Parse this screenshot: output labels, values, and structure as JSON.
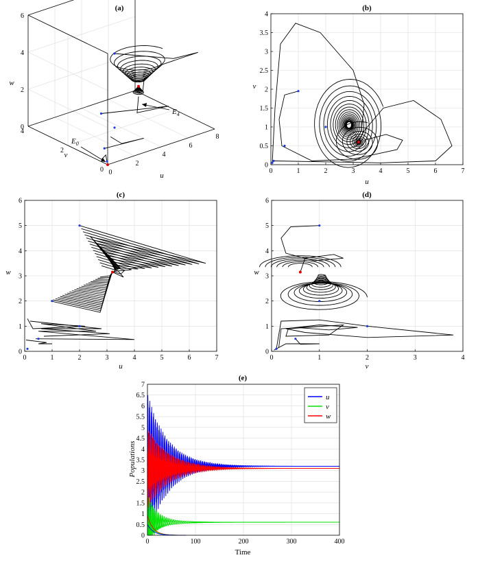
{
  "figure": {
    "panels": [
      {
        "id": "a",
        "title": "(a)"
      },
      {
        "id": "b",
        "title": "(b)"
      },
      {
        "id": "c",
        "title": "(c)"
      },
      {
        "id": "d",
        "title": "(d)"
      },
      {
        "id": "e",
        "title": "(e)"
      }
    ]
  },
  "chart_data": [
    {
      "panel": "(a)",
      "title": "(a)",
      "type": "line",
      "projection": "3d",
      "xlabel": "u",
      "ylabel": "v",
      "zlabel": "w",
      "u_ticks": [
        "0",
        "2",
        "4",
        "6",
        "8"
      ],
      "v_ticks": [
        "0",
        "2",
        "4"
      ],
      "w_ticks": [
        "0",
        "2",
        "4",
        "6"
      ],
      "xlim": [
        0,
        8
      ],
      "ylim": [
        0,
        4
      ],
      "zlim": [
        0,
        6
      ],
      "annotations": [
        {
          "text": "E",
          "sub": "4",
          "u": 3.2,
          "v": 0.6,
          "w": 3.15
        },
        {
          "text": "E",
          "sub": "0",
          "u": 0.0,
          "v": 0.0,
          "w": 0.0
        }
      ],
      "equilibria": [
        {
          "name": "E4",
          "u": 3.2,
          "v": 0.6,
          "w": 3.15
        },
        {
          "name": "E0",
          "u": 0,
          "v": 0,
          "w": 0
        }
      ],
      "initial_points": [
        {
          "u": 2,
          "v": 1,
          "w": 5
        },
        {
          "u": 1,
          "v": 1,
          "w": 2
        },
        {
          "u": 2,
          "v": 1,
          "w": 1
        },
        {
          "u": 0.5,
          "v": 0.5,
          "w": 0.5
        },
        {
          "u": 0.1,
          "v": 0.1,
          "w": 0.1
        }
      ],
      "grid": true
    },
    {
      "panel": "(b)",
      "title": "(b)",
      "type": "line",
      "xlabel": "u",
      "ylabel": "v",
      "xlim": [
        0,
        7
      ],
      "ylim": [
        0,
        4
      ],
      "x_ticks": [
        0,
        1,
        2,
        3,
        4,
        5,
        6,
        7
      ],
      "y_ticks": [
        0,
        0.5,
        1,
        1.5,
        2,
        2.5,
        3,
        3.5,
        4
      ],
      "equilibrium": {
        "u": 3.2,
        "v": 0.6
      },
      "initial_points": [
        [
          2,
          1
        ],
        [
          1,
          1.95
        ],
        [
          0.5,
          0.5
        ],
        [
          0.1,
          0.1
        ],
        [
          0.05,
          0.05
        ]
      ],
      "grid": true
    },
    {
      "panel": "(c)",
      "title": "(c)",
      "type": "line",
      "xlabel": "u",
      "ylabel": "w",
      "xlim": [
        0,
        7
      ],
      "ylim": [
        0,
        6
      ],
      "x_ticks": [
        0,
        1,
        2,
        3,
        4,
        5,
        6,
        7
      ],
      "y_ticks": [
        0,
        1,
        2,
        3,
        4,
        5,
        6
      ],
      "equilibrium": {
        "u": 3.2,
        "w": 3.15
      },
      "initial_points": [
        [
          2,
          5
        ],
        [
          1,
          2
        ],
        [
          2,
          1
        ],
        [
          0.5,
          0.5
        ],
        [
          0.1,
          0.1
        ]
      ],
      "grid": true
    },
    {
      "panel": "(d)",
      "title": "(d)",
      "type": "line",
      "xlabel": "v",
      "ylabel": "w",
      "xlim": [
        0,
        4
      ],
      "ylim": [
        0,
        6
      ],
      "x_ticks": [
        0,
        1,
        2,
        3,
        4
      ],
      "y_ticks": [
        0,
        1,
        2,
        3,
        4,
        5,
        6
      ],
      "equilibrium": {
        "v": 0.6,
        "w": 3.15
      },
      "initial_points": [
        [
          1,
          5
        ],
        [
          1,
          2
        ],
        [
          2,
          1
        ],
        [
          0.5,
          0.5
        ],
        [
          0.1,
          0.1
        ]
      ],
      "grid": true
    },
    {
      "panel": "(e)",
      "title": "(e)",
      "type": "line",
      "xlabel": "Time",
      "ylabel": "Populations",
      "xlim": [
        0,
        400
      ],
      "ylim": [
        0,
        7
      ],
      "x_ticks": [
        0,
        100,
        200,
        300,
        400
      ],
      "y_ticks": [
        0,
        0.5,
        1,
        1.5,
        2,
        2.5,
        3,
        3.5,
        4,
        4.5,
        5,
        5.5,
        6,
        6.5,
        7
      ],
      "legend_position": "top-right",
      "series": [
        {
          "name": "u",
          "color": "#0000ff",
          "steady_state": 3.2,
          "initial_max": 6.6,
          "oscillation_decay_time": 150
        },
        {
          "name": "v",
          "color": "#00e000",
          "steady_state": 0.6,
          "initial_max": 1.95,
          "oscillation_decay_time": 60
        },
        {
          "name": "w",
          "color": "#ff0000",
          "steady_state": 3.1,
          "initial_max": 5.0,
          "oscillation_decay_time": 160
        }
      ],
      "grid": true
    }
  ]
}
